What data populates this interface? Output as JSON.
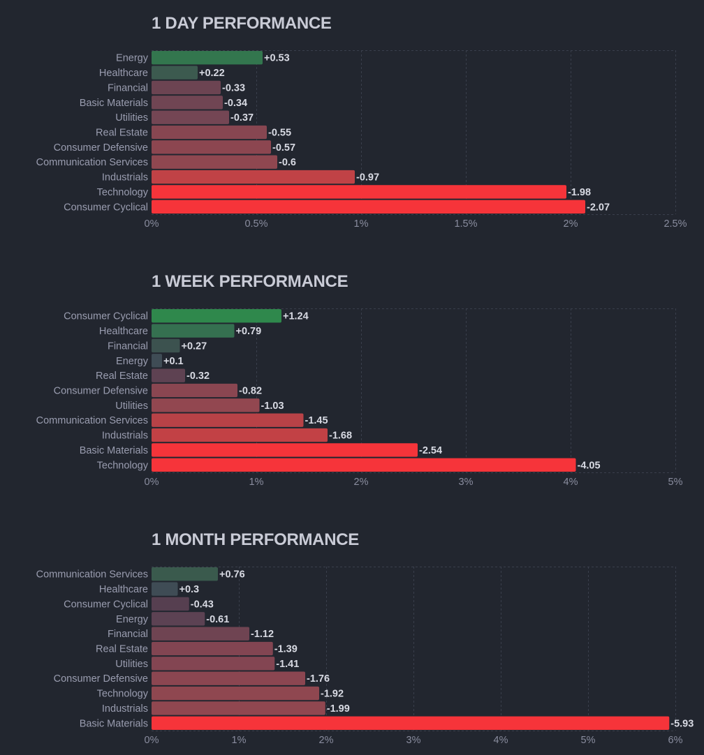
{
  "chart_data": [
    {
      "type": "bar",
      "orientation": "horizontal",
      "title": "1 DAY PERFORMANCE",
      "xlabel": "",
      "ylabel": "",
      "xlim": [
        0,
        2.5
      ],
      "xticks": [
        0,
        0.5,
        1,
        1.5,
        2,
        2.5
      ],
      "xtick_labels": [
        "0%",
        "0.5%",
        "1%",
        "1.5%",
        "2%",
        "2.5%"
      ],
      "grid": true,
      "categories": [
        "Energy",
        "Healthcare",
        "Financial",
        "Basic Materials",
        "Utilities",
        "Real Estate",
        "Consumer Defensive",
        "Communication Services",
        "Industrials",
        "Technology",
        "Consumer Cyclical"
      ],
      "values": [
        0.53,
        0.22,
        -0.33,
        -0.34,
        -0.37,
        -0.55,
        -0.57,
        -0.6,
        -0.97,
        -1.98,
        -2.07
      ],
      "value_labels": [
        "+0.53",
        "+0.22",
        "-0.33",
        "-0.34",
        "-0.37",
        "-0.55",
        "-0.57",
        "-0.6",
        "-0.97",
        "-1.98",
        "-2.07"
      ],
      "colors": [
        "#33764e",
        "#3c5a4f",
        "#6c4452",
        "#704553",
        "#744654",
        "#874651",
        "#8c4650",
        "#8f4750",
        "#c04246",
        "#f6343a",
        "#f6343a"
      ]
    },
    {
      "type": "bar",
      "orientation": "horizontal",
      "title": "1 WEEK PERFORMANCE",
      "xlabel": "",
      "ylabel": "",
      "xlim": [
        0,
        5
      ],
      "xticks": [
        0,
        1,
        2,
        3,
        4,
        5
      ],
      "xtick_labels": [
        "0%",
        "1%",
        "2%",
        "3%",
        "4%",
        "5%"
      ],
      "grid": true,
      "categories": [
        "Consumer Cyclical",
        "Healthcare",
        "Financial",
        "Energy",
        "Real Estate",
        "Consumer Defensive",
        "Utilities",
        "Communication Services",
        "Industrials",
        "Basic Materials",
        "Technology"
      ],
      "values": [
        1.24,
        0.79,
        0.27,
        0.1,
        -0.32,
        -0.82,
        -1.03,
        -1.45,
        -1.68,
        -2.54,
        -4.05
      ],
      "value_labels": [
        "+1.24",
        "+0.79",
        "+0.27",
        "+0.1",
        "-0.32",
        "-0.82",
        "-1.03",
        "-1.45",
        "-1.68",
        "-2.54",
        "-4.05"
      ],
      "colors": [
        "#2f884c",
        "#357050",
        "#3c524f",
        "#3f4c55",
        "#5e4252",
        "#8a4651",
        "#924750",
        "#b84247",
        "#c24145",
        "#f6343a",
        "#f6343a"
      ]
    },
    {
      "type": "bar",
      "orientation": "horizontal",
      "title": "1 MONTH PERFORMANCE",
      "xlabel": "",
      "ylabel": "",
      "xlim": [
        0,
        6
      ],
      "xticks": [
        0,
        1,
        2,
        3,
        4,
        5,
        6
      ],
      "xtick_labels": [
        "0%",
        "1%",
        "2%",
        "3%",
        "4%",
        "5%",
        "6%"
      ],
      "grid": true,
      "categories": [
        "Communication Services",
        "Healthcare",
        "Consumer Cyclical",
        "Energy",
        "Financial",
        "Real Estate",
        "Utilities",
        "Consumer Defensive",
        "Technology",
        "Industrials",
        "Basic Materials"
      ],
      "values": [
        0.76,
        0.3,
        -0.43,
        -0.61,
        -1.12,
        -1.39,
        -1.41,
        -1.76,
        -1.92,
        -1.99,
        -5.93
      ],
      "value_labels": [
        "+0.76",
        "+0.3",
        "-0.43",
        "-0.61",
        "-1.12",
        "-1.39",
        "-1.41",
        "-1.76",
        "-1.92",
        "-1.99",
        "-5.93"
      ],
      "colors": [
        "#3a5a4d",
        "#3f4c55",
        "#563f50",
        "#5c4253",
        "#6f4452",
        "#824552",
        "#834552",
        "#8b4651",
        "#8f4750",
        "#904750",
        "#f6343a"
      ]
    }
  ]
}
